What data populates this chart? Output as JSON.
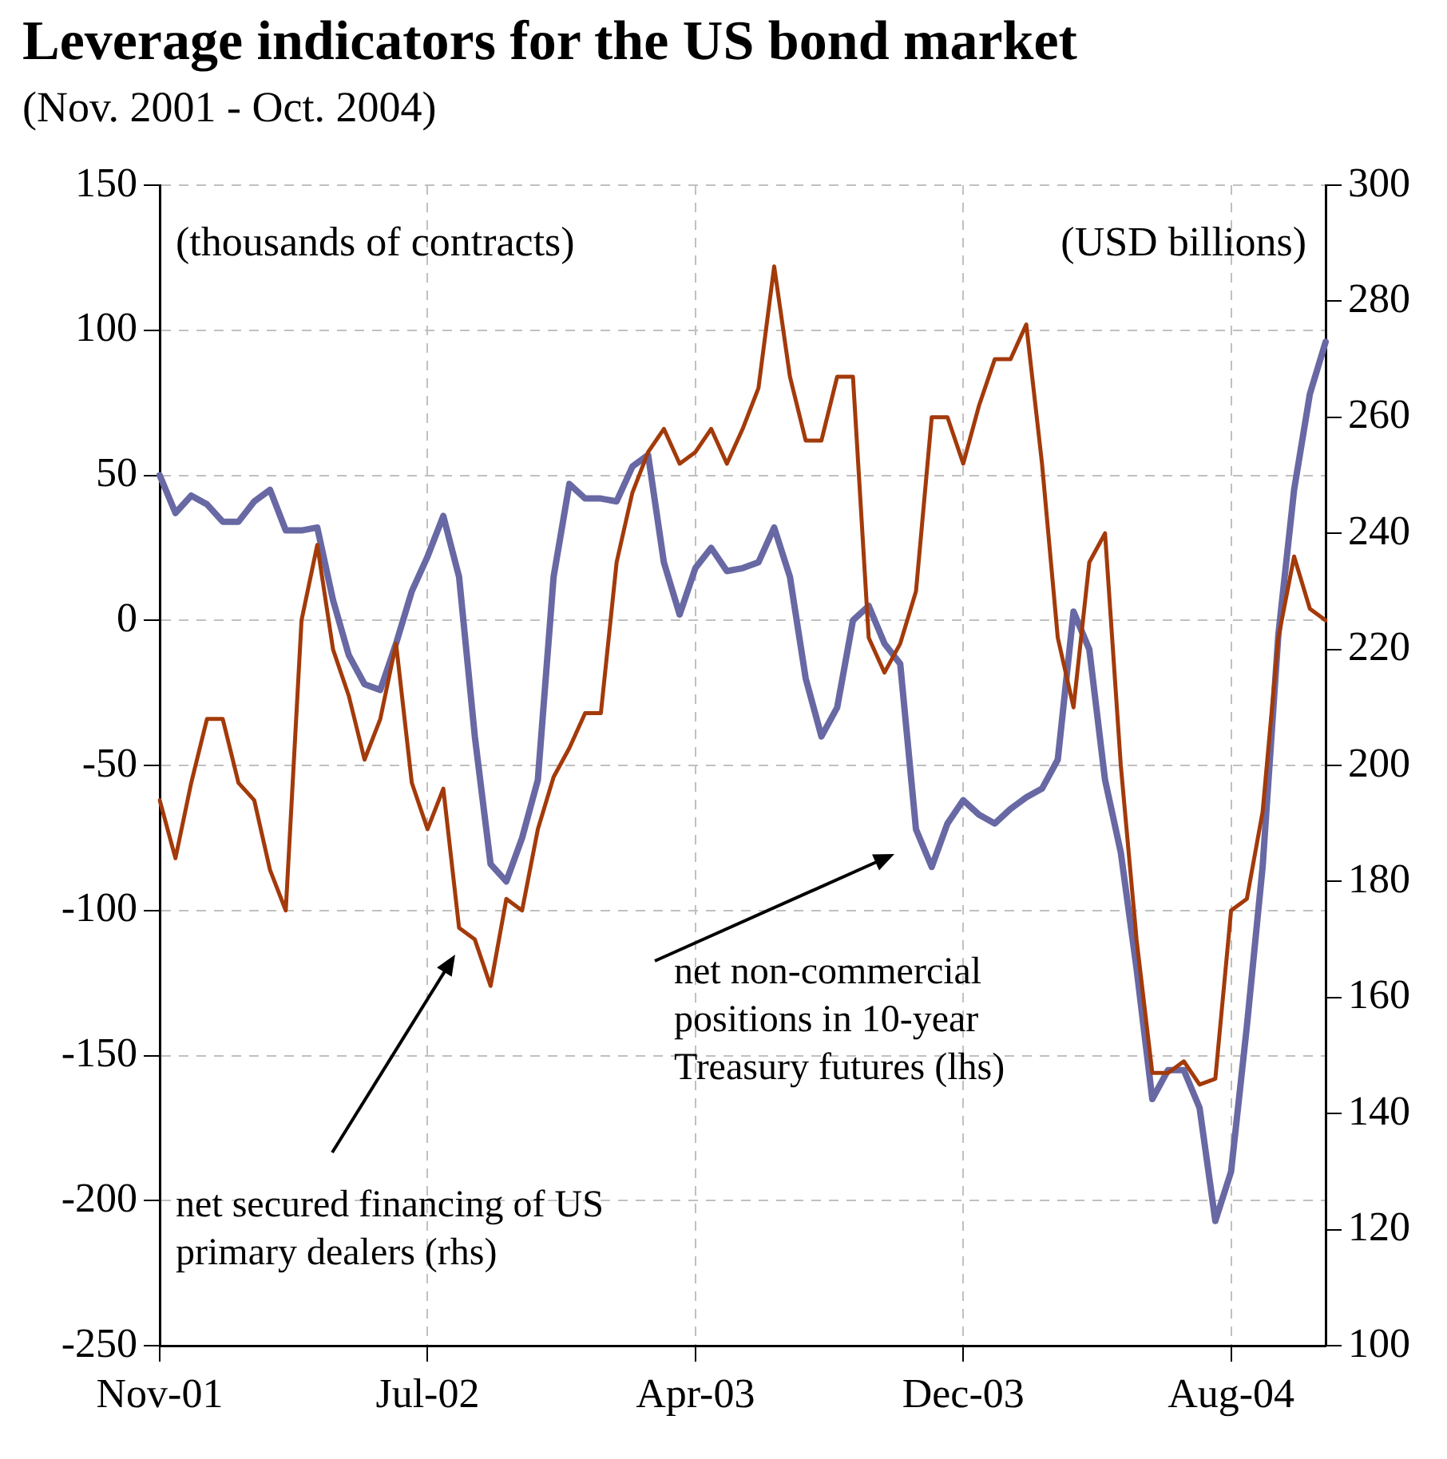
{
  "chart_data": {
    "type": "line",
    "title": "Leverage indicators for the US bond market",
    "subtitle": "(Nov. 2001 - Oct. 2004)",
    "ylabel": "(thousands of contracts)",
    "y2label": "(USD billions)",
    "annotations": [
      "net secured financing of US primary dealers (rhs)",
      "net non-commercial positions in 10-year Treasury futures (lhs)"
    ],
    "categories": [
      "Nov-01",
      null,
      null,
      null,
      null,
      null,
      null,
      null,
      null,
      null,
      null,
      null,
      null,
      null,
      null,
      null,
      null,
      "Jul-02",
      null,
      null,
      null,
      null,
      null,
      null,
      null,
      null,
      null,
      null,
      null,
      null,
      null,
      null,
      null,
      null,
      "Apr-03",
      null,
      null,
      null,
      null,
      null,
      null,
      null,
      null,
      null,
      null,
      null,
      null,
      null,
      null,
      null,
      null,
      "Dec-03",
      null,
      null,
      null,
      null,
      null,
      null,
      null,
      null,
      null,
      null,
      null,
      null,
      null,
      null,
      null,
      null,
      "Aug-04",
      null,
      null,
      null,
      null,
      null,
      null
    ],
    "ylim": [
      -250,
      150
    ],
    "yticks": [
      -250,
      -200,
      -150,
      -100,
      -50,
      0,
      50,
      100,
      150
    ],
    "y2lim": [
      100,
      300
    ],
    "y2ticks": [
      100,
      120,
      140,
      160,
      180,
      200,
      220,
      240,
      260,
      280,
      300
    ],
    "grid": true,
    "legend": false,
    "marker": "none",
    "line_style": "solid",
    "series": [
      {
        "color": "#6868a4",
        "values": [
          50,
          37,
          43,
          40,
          34,
          34,
          41,
          45,
          31,
          31,
          32,
          7,
          -12,
          -22,
          -24,
          -8,
          10,
          22,
          36,
          15,
          -40,
          -84,
          -90,
          -75,
          -55,
          15,
          47,
          42,
          42,
          41,
          53,
          57,
          20,
          2,
          18,
          25,
          17,
          18,
          20,
          32,
          15,
          -20,
          -40,
          -30,
          0,
          5,
          -8,
          -15,
          -72,
          -85,
          -70,
          -62,
          -67,
          -70,
          -65,
          -61,
          -58,
          -48,
          3,
          -10,
          -55,
          -80,
          -120,
          -165,
          -155,
          -155,
          -168,
          -207,
          -190,
          -140,
          -85,
          -5,
          45,
          78,
          96
        ]
      },
      {
        "color": "#a33a0a",
        "axis": "y2",
        "values": [
          194,
          184,
          197,
          208,
          208,
          197,
          194,
          182,
          175,
          225,
          238,
          220,
          212,
          201,
          208,
          221,
          197,
          189,
          196,
          172,
          170,
          162,
          177,
          175,
          189,
          198,
          203,
          209,
          209,
          235,
          247,
          254,
          258,
          252,
          254,
          258,
          252,
          258,
          265,
          286,
          267,
          256,
          256,
          267,
          267,
          222,
          216,
          221,
          230,
          260,
          260,
          252,
          262,
          270,
          270,
          276,
          252,
          222,
          210,
          235,
          240,
          200,
          170,
          147,
          147,
          149,
          145,
          146,
          175,
          177,
          192,
          222,
          236,
          227,
          225
        ]
      }
    ]
  }
}
